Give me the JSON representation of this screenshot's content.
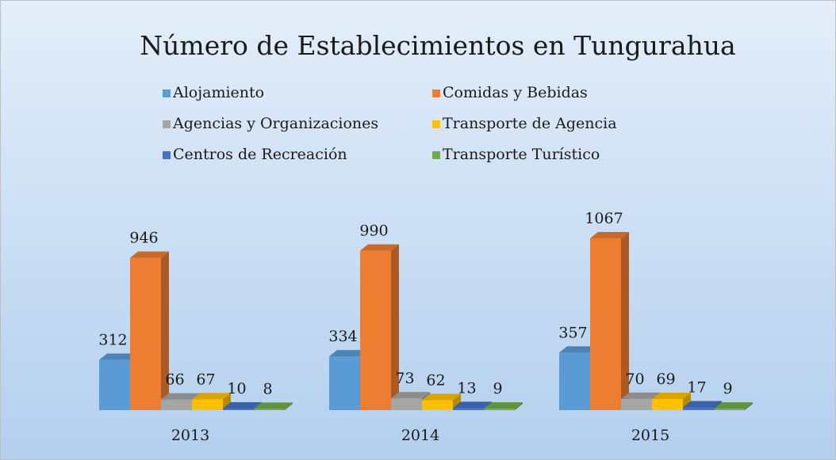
{
  "chart_data": {
    "type": "bar3d",
    "title": "Número de Establecimientos en Tungurahua",
    "categories": [
      "2013",
      "2014",
      "2015"
    ],
    "series": [
      {
        "name": "Alojamiento",
        "color": "#5b9bd5",
        "values": [
          312,
          334,
          357
        ]
      },
      {
        "name": "Comidas y Bebidas",
        "color": "#ed7d31",
        "values": [
          946,
          990,
          1067
        ]
      },
      {
        "name": "Agencias y Organizaciones",
        "color": "#a5a5a5",
        "values": [
          66,
          73,
          70
        ]
      },
      {
        "name": "Transporte de Agencia",
        "color": "#ffc000",
        "values": [
          67,
          62,
          69
        ]
      },
      {
        "name": "Centros de Recreación",
        "color": "#4472c4",
        "values": [
          10,
          13,
          17
        ]
      },
      {
        "name": "Transporte Turístico",
        "color": "#70ad47",
        "values": [
          8,
          9,
          9
        ]
      }
    ],
    "legend": "top"
  }
}
